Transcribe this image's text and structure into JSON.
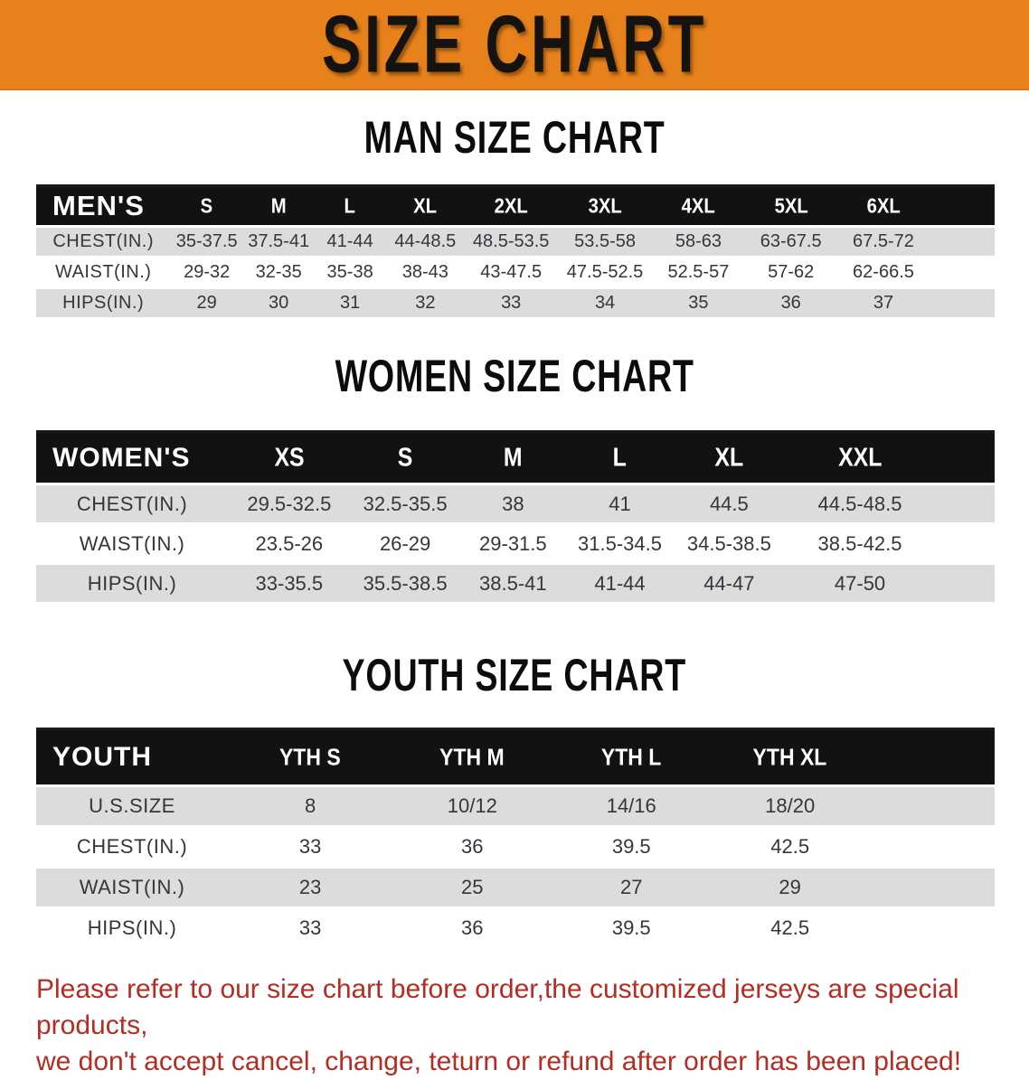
{
  "banner": {
    "title": "SIZE CHART"
  },
  "sections": {
    "men": {
      "title": "MAN SIZE CHART",
      "header_label": "MEN'S",
      "sizes": [
        "S",
        "M",
        "L",
        "XL",
        "2XL",
        "3XL",
        "4XL",
        "5XL",
        "6XL"
      ],
      "rows": [
        {
          "label": "CHEST(IN.)",
          "values": [
            "35-37.5",
            "37.5-41",
            "41-44",
            "44-48.5",
            "48.5-53.5",
            "53.5-58",
            "58-63",
            "63-67.5",
            "67.5-72"
          ]
        },
        {
          "label": "WAIST(IN.)",
          "values": [
            "29-32",
            "32-35",
            "35-38",
            "38-43",
            "43-47.5",
            "47.5-52.5",
            "52.5-57",
            "57-62",
            "62-66.5"
          ]
        },
        {
          "label": "HIPS(IN.)",
          "values": [
            "29",
            "30",
            "31",
            "32",
            "33",
            "34",
            "35",
            "36",
            "37"
          ]
        }
      ]
    },
    "women": {
      "title": "WOMEN SIZE CHART",
      "header_label": "WOMEN'S",
      "sizes": [
        "XS",
        "S",
        "M",
        "L",
        "XL",
        "XXL"
      ],
      "rows": [
        {
          "label": "CHEST(IN.)",
          "values": [
            "29.5-32.5",
            "32.5-35.5",
            "38",
            "41",
            "44.5",
            "44.5-48.5"
          ]
        },
        {
          "label": "WAIST(IN.)",
          "values": [
            "23.5-26",
            "26-29",
            "29-31.5",
            "31.5-34.5",
            "34.5-38.5",
            "38.5-42.5"
          ]
        },
        {
          "label": "HIPS(IN.)",
          "values": [
            "33-35.5",
            "35.5-38.5",
            "38.5-41",
            "41-44",
            "44-47",
            "47-50"
          ]
        }
      ]
    },
    "youth": {
      "title": "YOUTH SIZE CHART",
      "header_label": "YOUTH",
      "sizes": [
        "YTH S",
        "YTH M",
        "YTH L",
        "YTH XL"
      ],
      "rows": [
        {
          "label": "U.S.SIZE",
          "values": [
            "8",
            "10/12",
            "14/16",
            "18/20"
          ]
        },
        {
          "label": "CHEST(IN.)",
          "values": [
            "33",
            "36",
            "39.5",
            "42.5"
          ]
        },
        {
          "label": "WAIST(IN.)",
          "values": [
            "23",
            "25",
            "27",
            "29"
          ]
        },
        {
          "label": "HIPS(IN.)",
          "values": [
            "33",
            "36",
            "39.5",
            "42.5"
          ]
        }
      ]
    }
  },
  "footer": {
    "line1": "Please refer to our size chart before order,the customized jerseys are special products,",
    "line2": "we don't accept cancel, change, teturn or refund after order has been placed!"
  },
  "colors": {
    "banner_bg": "#e6811c",
    "header_bar": "#121212",
    "row_stripe": "#dcdcdc",
    "disclaimer_red": "#b22e24"
  }
}
